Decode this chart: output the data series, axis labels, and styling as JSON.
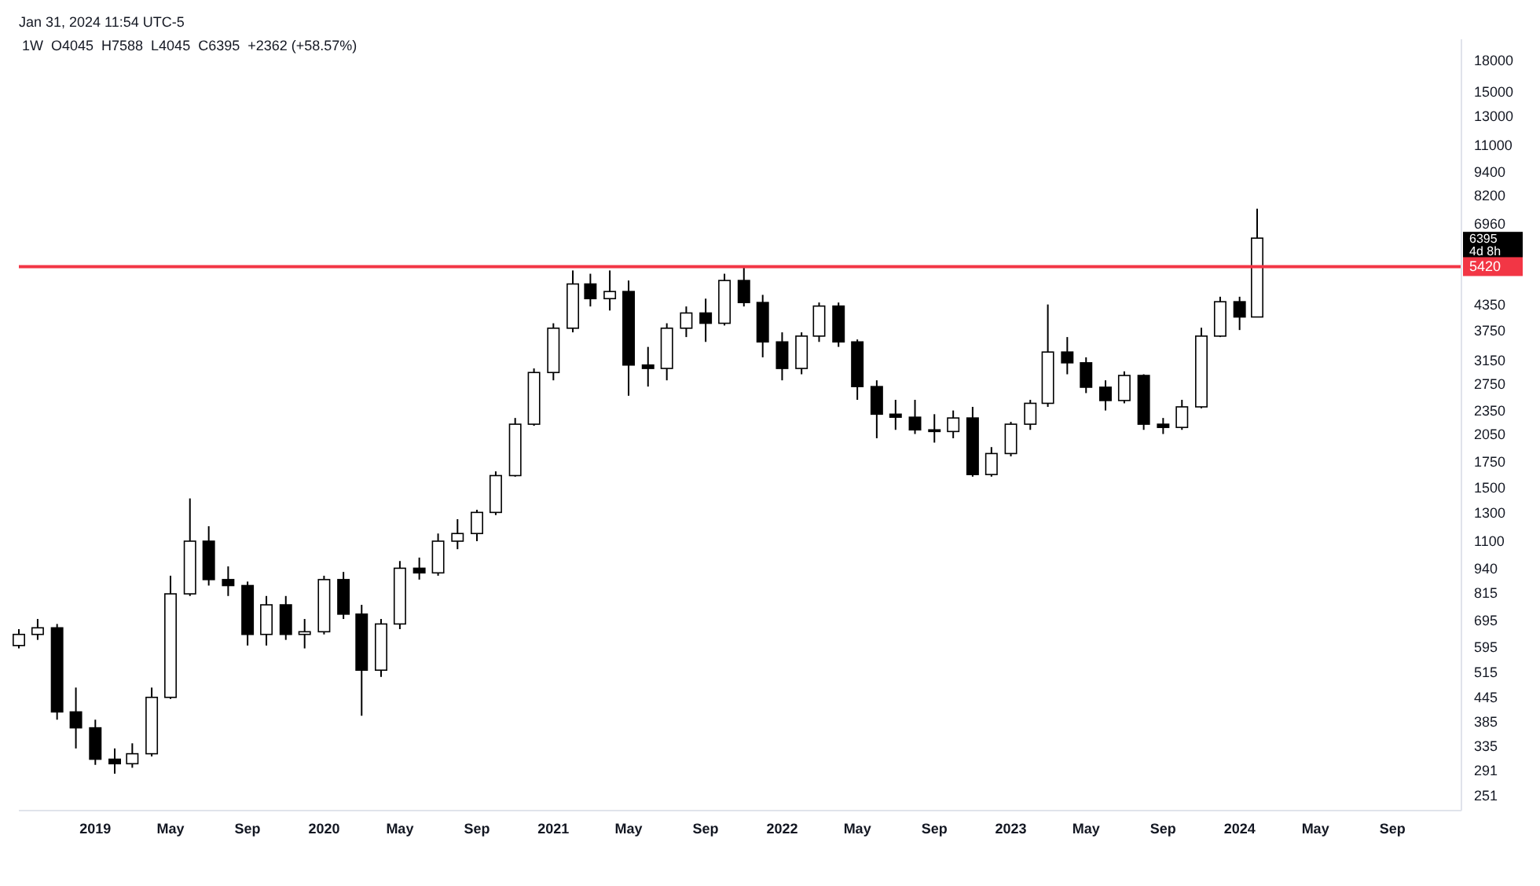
{
  "chart_data": {
    "type": "candlestick",
    "title": "1W  O4045  H7588  L4045  C6395  +2362 (+58.57%)",
    "log": "y",
    "xlim": [
      "2018-09-01",
      "2024-12-20"
    ],
    "ylim": [
      230,
      20300
    ],
    "xticks": [
      {
        "value": "2019-01-01",
        "label": "2019"
      },
      {
        "value": "2019-05-01",
        "label": "May"
      },
      {
        "value": "2019-09-01",
        "label": "Sep"
      },
      {
        "value": "2020-01-01",
        "label": "2020"
      },
      {
        "value": "2020-05-01",
        "label": "May"
      },
      {
        "value": "2020-09-01",
        "label": "Sep"
      },
      {
        "value": "2021-01-01",
        "label": "2021"
      },
      {
        "value": "2021-05-01",
        "label": "May"
      },
      {
        "value": "2021-09-01",
        "label": "Sep"
      },
      {
        "value": "2022-01-01",
        "label": "2022"
      },
      {
        "value": "2022-05-01",
        "label": "May"
      },
      {
        "value": "2022-09-01",
        "label": "Sep"
      },
      {
        "value": "2023-01-01",
        "label": "2023"
      },
      {
        "value": "2023-05-01",
        "label": "May"
      },
      {
        "value": "2023-09-01",
        "label": "Sep"
      },
      {
        "value": "2024-01-01",
        "label": "2024"
      },
      {
        "value": "2024-05-01",
        "label": "May"
      },
      {
        "value": "2024-09-01",
        "label": "Sep"
      }
    ],
    "yticks": [
      18000,
      15000,
      13000,
      11000,
      9400,
      8200,
      6960,
      4350,
      3750,
      3150,
      2750,
      2350,
      2050,
      1750,
      1500,
      1300,
      1100,
      940,
      815,
      695,
      595,
      515,
      445,
      385,
      335,
      291,
      251
    ],
    "x": [
      "2018-09-01",
      "2018-10-01",
      "2018-11-01",
      "2018-12-01",
      "2019-01-01",
      "2019-02-01",
      "2019-03-01",
      "2019-04-01",
      "2019-05-01",
      "2019-06-01",
      "2019-07-01",
      "2019-08-01",
      "2019-09-01",
      "2019-10-01",
      "2019-11-01",
      "2019-12-01",
      "2020-01-01",
      "2020-02-01",
      "2020-03-01",
      "2020-04-01",
      "2020-05-01",
      "2020-06-01",
      "2020-07-01",
      "2020-08-01",
      "2020-09-01",
      "2020-10-01",
      "2020-11-01",
      "2020-12-01",
      "2021-01-01",
      "2021-02-01",
      "2021-03-01",
      "2021-04-01",
      "2021-05-01",
      "2021-06-01",
      "2021-07-01",
      "2021-08-01",
      "2021-09-01",
      "2021-10-01",
      "2021-11-01",
      "2021-12-01",
      "2022-01-01",
      "2022-02-01",
      "2022-03-01",
      "2022-04-01",
      "2022-05-01",
      "2022-06-01",
      "2022-07-01",
      "2022-08-01",
      "2022-09-01",
      "2022-10-01",
      "2022-11-01",
      "2022-12-01",
      "2023-01-01",
      "2023-02-01",
      "2023-03-01",
      "2023-04-01",
      "2023-05-01",
      "2023-06-01",
      "2023-07-01",
      "2023-08-01",
      "2023-09-01",
      "2023-10-01",
      "2023-11-01",
      "2023-12-01",
      "2024-01-01",
      "2024-01-29"
    ],
    "ohlc": [
      [
        600,
        660,
        590,
        640
      ],
      [
        640,
        700,
        620,
        665
      ],
      [
        665,
        680,
        390,
        408
      ],
      [
        408,
        470,
        330,
        372
      ],
      [
        372,
        390,
        300,
        310
      ],
      [
        310,
        330,
        285,
        302
      ],
      [
        302,
        340,
        295,
        320
      ],
      [
        320,
        470,
        315,
        444
      ],
      [
        444,
        900,
        440,
        810
      ],
      [
        810,
        1410,
        800,
        1100
      ],
      [
        1100,
        1200,
        850,
        880
      ],
      [
        880,
        950,
        800,
        850
      ],
      [
        850,
        870,
        600,
        640
      ],
      [
        640,
        800,
        600,
        760
      ],
      [
        760,
        800,
        620,
        640
      ],
      [
        640,
        700,
        590,
        650
      ],
      [
        650,
        900,
        640,
        880
      ],
      [
        880,
        920,
        700,
        720
      ],
      [
        720,
        760,
        399,
        520
      ],
      [
        520,
        700,
        500,
        680
      ],
      [
        680,
        980,
        660,
        940
      ],
      [
        940,
        1000,
        880,
        915
      ],
      [
        915,
        1150,
        900,
        1100
      ],
      [
        1100,
        1250,
        1050,
        1150
      ],
      [
        1150,
        1320,
        1100,
        1300
      ],
      [
        1300,
        1650,
        1280,
        1610
      ],
      [
        1610,
        2250,
        1600,
        2170
      ],
      [
        2170,
        3000,
        2150,
        2930
      ],
      [
        2930,
        3900,
        2800,
        3790
      ],
      [
        3790,
        5300,
        3700,
        4900
      ],
      [
        4900,
        5200,
        4300,
        4500
      ],
      [
        4500,
        5300,
        4200,
        4690
      ],
      [
        4690,
        5000,
        2560,
        3060
      ],
      [
        3060,
        3400,
        2700,
        3000
      ],
      [
        3000,
        3900,
        2800,
        3790
      ],
      [
        3790,
        4300,
        3600,
        4140
      ],
      [
        4140,
        4500,
        3500,
        3900
      ],
      [
        3900,
        5200,
        3850,
        5000
      ],
      [
        5000,
        5420,
        4300,
        4400
      ],
      [
        4400,
        4600,
        3200,
        3500
      ],
      [
        3500,
        3700,
        2800,
        3000
      ],
      [
        3000,
        3700,
        2900,
        3620
      ],
      [
        3620,
        4400,
        3500,
        4310
      ],
      [
        4310,
        4400,
        3400,
        3500
      ],
      [
        3500,
        3550,
        2500,
        2700
      ],
      [
        2700,
        2800,
        2000,
        2300
      ],
      [
        2300,
        2500,
        2100,
        2260
      ],
      [
        2260,
        2500,
        2050,
        2100
      ],
      [
        2100,
        2300,
        1950,
        2080
      ],
      [
        2080,
        2350,
        2000,
        2250
      ],
      [
        2250,
        2400,
        1600,
        1620
      ],
      [
        1620,
        1900,
        1600,
        1830
      ],
      [
        1830,
        2200,
        1800,
        2170
      ],
      [
        2170,
        2500,
        2100,
        2450
      ],
      [
        2450,
        4350,
        2400,
        3300
      ],
      [
        3300,
        3600,
        2900,
        3100
      ],
      [
        3100,
        3200,
        2600,
        2690
      ],
      [
        2690,
        2800,
        2350,
        2490
      ],
      [
        2490,
        2950,
        2450,
        2880
      ],
      [
        2880,
        2900,
        2100,
        2170
      ],
      [
        2170,
        2250,
        2050,
        2130
      ],
      [
        2130,
        2500,
        2100,
        2400
      ],
      [
        2400,
        3800,
        2380,
        3620
      ],
      [
        3620,
        4550,
        3600,
        4420
      ],
      [
        4420,
        4550,
        3750,
        4045
      ],
      [
        4045,
        7588,
        4045,
        6395
      ]
    ],
    "ref_lines": [
      {
        "axis": "y",
        "value": 5420,
        "label": "5420",
        "color": "#f23645"
      }
    ],
    "annotations": [
      "Jan 31, 2024 11:54 UTC-5",
      "6395",
      "4d 8h"
    ]
  }
}
